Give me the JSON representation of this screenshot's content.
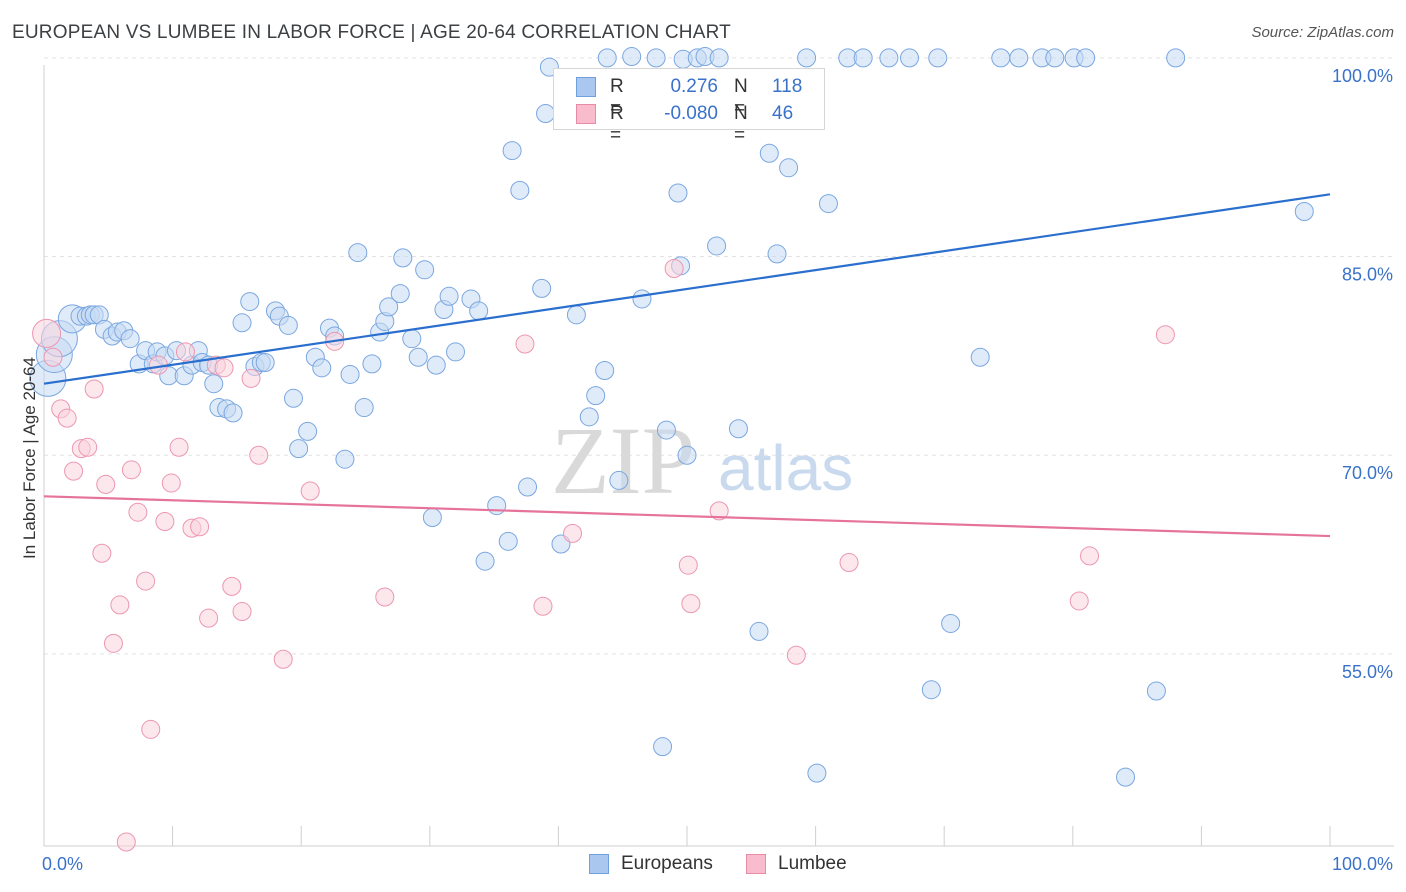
{
  "header": {
    "title": "EUROPEAN VS LUMBEE IN LABOR FORCE | AGE 20-64 CORRELATION CHART",
    "source": "Source: ZipAtlas.com"
  },
  "watermark": {
    "zip": "ZIP",
    "atlas": "atlas"
  },
  "legend": {
    "rows": [
      {
        "r_label": "R =",
        "r_value": "0.276",
        "n_label": "N =",
        "n_value": "118",
        "color": "#a9c7ef",
        "border": "#6f9fdc"
      },
      {
        "r_label": "R =",
        "r_value": "-0.080",
        "n_label": "N =",
        "n_value": "46",
        "color": "#f8bccd",
        "border": "#e98aa7"
      }
    ]
  },
  "bottom_legend": [
    {
      "label": "Europeans",
      "color": "#a9c7ef",
      "border": "#6f9fdc"
    },
    {
      "label": "Lumbee",
      "color": "#f8bccd",
      "border": "#e98aa7"
    }
  ],
  "chart_data": {
    "type": "scatter",
    "title": "EUROPEAN VS LUMBEE IN LABOR FORCE | AGE 20-64 CORRELATION CHART",
    "xlabel": "",
    "ylabel": "In Labor Force | Age 20-64",
    "xlim": [
      0,
      100
    ],
    "ylim": [
      40.5,
      101.5
    ],
    "x_tick_labels": [
      {
        "value": 0,
        "label": "0.0%"
      },
      {
        "value": 100,
        "label": "100.0%"
      }
    ],
    "y_tick_labels": [
      {
        "value": 55,
        "label": "55.0%"
      },
      {
        "value": 70,
        "label": "70.0%"
      },
      {
        "value": 85,
        "label": "85.0%"
      },
      {
        "value": 100,
        "label": "100.0%"
      }
    ],
    "grid": true,
    "legend_position": "top-center",
    "series": [
      {
        "name": "Europeans",
        "color": "#7aa7e0",
        "fill": "#c6daf4",
        "trend": {
          "x": [
            0,
            100
          ],
          "y": [
            75.4,
            89.7
          ],
          "color": "#2b6fce"
        },
        "points": [
          [
            0.3,
            75.8,
            3
          ],
          [
            0.8,
            77.6,
            3
          ],
          [
            1.2,
            78.8,
            3
          ],
          [
            2.2,
            80.3,
            2
          ],
          [
            2.8,
            80.5,
            1
          ],
          [
            3.3,
            80.5,
            1
          ],
          [
            3.6,
            80.6,
            1
          ],
          [
            3.9,
            80.6,
            1
          ],
          [
            4.3,
            80.6,
            1
          ],
          [
            4.7,
            79.5,
            1
          ],
          [
            5.3,
            79.0,
            1
          ],
          [
            5.7,
            79.3,
            1
          ],
          [
            6.2,
            79.4,
            1
          ],
          [
            6.7,
            78.8,
            1
          ],
          [
            7.4,
            76.9,
            1
          ],
          [
            7.9,
            77.9,
            1
          ],
          [
            8.5,
            76.9,
            1
          ],
          [
            8.8,
            77.8,
            1
          ],
          [
            9.4,
            77.5,
            1
          ],
          [
            9.7,
            76.0,
            1
          ],
          [
            10.3,
            77.9,
            1
          ],
          [
            10.9,
            76.0,
            1
          ],
          [
            11.5,
            76.8,
            1
          ],
          [
            12.0,
            77.9,
            1
          ],
          [
            12.3,
            77.0,
            1
          ],
          [
            12.8,
            76.8,
            1
          ],
          [
            13.2,
            75.4,
            1
          ],
          [
            13.6,
            73.6,
            1
          ],
          [
            14.2,
            73.5,
            1
          ],
          [
            14.7,
            73.2,
            1
          ],
          [
            15.4,
            80.0,
            1
          ],
          [
            16.0,
            81.6,
            1
          ],
          [
            16.4,
            76.7,
            1
          ],
          [
            16.9,
            77.0,
            1
          ],
          [
            17.2,
            77.0,
            1
          ],
          [
            18.0,
            80.9,
            1
          ],
          [
            18.3,
            80.5,
            1
          ],
          [
            19.0,
            79.8,
            1
          ],
          [
            19.4,
            74.3,
            1
          ],
          [
            19.8,
            70.5,
            1
          ],
          [
            20.5,
            71.8,
            1
          ],
          [
            21.1,
            77.4,
            1
          ],
          [
            21.6,
            76.6,
            1
          ],
          [
            22.2,
            79.6,
            1
          ],
          [
            22.6,
            79.0,
            1
          ],
          [
            23.4,
            69.7,
            1
          ],
          [
            23.8,
            76.1,
            1
          ],
          [
            24.4,
            85.3,
            1
          ],
          [
            24.9,
            73.6,
            1
          ],
          [
            25.5,
            76.9,
            1
          ],
          [
            26.1,
            79.3,
            1
          ],
          [
            26.5,
            80.1,
            1
          ],
          [
            26.8,
            81.2,
            1
          ],
          [
            27.7,
            82.2,
            1
          ],
          [
            27.9,
            84.9,
            1
          ],
          [
            28.6,
            78.8,
            1
          ],
          [
            29.1,
            77.4,
            1
          ],
          [
            29.6,
            84.0,
            1
          ],
          [
            30.2,
            65.3,
            1
          ],
          [
            30.5,
            76.8,
            1
          ],
          [
            31.1,
            81.0,
            1
          ],
          [
            31.5,
            82.0,
            1
          ],
          [
            32.0,
            77.8,
            1
          ],
          [
            33.2,
            81.8,
            1
          ],
          [
            33.8,
            80.9,
            1
          ],
          [
            34.3,
            62.0,
            1
          ],
          [
            35.2,
            66.2,
            1
          ],
          [
            36.1,
            63.5,
            1
          ],
          [
            36.4,
            93.0,
            1
          ],
          [
            37.0,
            90.0,
            1
          ],
          [
            37.6,
            67.6,
            1
          ],
          [
            38.7,
            82.6,
            1
          ],
          [
            39.0,
            95.8,
            1
          ],
          [
            39.3,
            99.3,
            1
          ],
          [
            40.2,
            63.3,
            1
          ],
          [
            41.4,
            80.6,
            1
          ],
          [
            42.4,
            72.9,
            1
          ],
          [
            42.9,
            74.5,
            1
          ],
          [
            43.6,
            76.4,
            1
          ],
          [
            43.8,
            100.0,
            1
          ],
          [
            44.7,
            68.1,
            1
          ],
          [
            45.3,
            96.9,
            1
          ],
          [
            45.7,
            100.1,
            1
          ],
          [
            46.5,
            81.8,
            1
          ],
          [
            47.0,
            96.2,
            1
          ],
          [
            47.6,
            100.0,
            1
          ],
          [
            48.1,
            48.0,
            1
          ],
          [
            48.4,
            71.9,
            1
          ],
          [
            49.3,
            89.8,
            1
          ],
          [
            49.5,
            84.3,
            1
          ],
          [
            49.7,
            99.9,
            1
          ],
          [
            50.0,
            70.0,
            1
          ],
          [
            50.8,
            100.0,
            1
          ],
          [
            51.4,
            100.1,
            1
          ],
          [
            52.3,
            85.8,
            1
          ],
          [
            52.5,
            100.0,
            1
          ],
          [
            54.0,
            72.0,
            1
          ],
          [
            55.6,
            56.7,
            1
          ],
          [
            56.4,
            92.8,
            1
          ],
          [
            57.0,
            85.2,
            1
          ],
          [
            57.9,
            91.7,
            1
          ],
          [
            59.3,
            100.0,
            1
          ],
          [
            60.1,
            46.0,
            1
          ],
          [
            61.0,
            89.0,
            1
          ],
          [
            62.5,
            100.0,
            1
          ],
          [
            63.7,
            100.0,
            1
          ],
          [
            65.7,
            100.0,
            1
          ],
          [
            67.3,
            100.0,
            1
          ],
          [
            69.0,
            52.3,
            1
          ],
          [
            69.5,
            100.0,
            1
          ],
          [
            70.5,
            57.3,
            1
          ],
          [
            72.8,
            77.4,
            1
          ],
          [
            74.4,
            100.0,
            1
          ],
          [
            75.8,
            100.0,
            1
          ],
          [
            77.6,
            100.0,
            1
          ],
          [
            78.6,
            100.0,
            1
          ],
          [
            80.1,
            100.0,
            1
          ],
          [
            81.0,
            100.0,
            1
          ],
          [
            84.1,
            45.7,
            1
          ],
          [
            86.5,
            52.2,
            1
          ],
          [
            88.0,
            100.0,
            1
          ],
          [
            98.0,
            88.4,
            1
          ]
        ]
      },
      {
        "name": "Lumbee",
        "color": "#ec97b1",
        "fill": "#f9d3de",
        "trend": {
          "x": [
            0,
            100
          ],
          "y": [
            66.9,
            63.9
          ],
          "color": "#e5739a"
        },
        "points": [
          [
            0.2,
            79.2,
            2
          ],
          [
            0.7,
            77.4,
            1
          ],
          [
            1.3,
            73.5,
            1
          ],
          [
            1.8,
            72.8,
            1
          ],
          [
            2.3,
            68.8,
            1
          ],
          [
            2.9,
            70.5,
            1
          ],
          [
            3.4,
            70.6,
            1
          ],
          [
            3.9,
            75.0,
            1
          ],
          [
            4.5,
            62.6,
            1
          ],
          [
            4.8,
            67.8,
            1
          ],
          [
            5.4,
            55.8,
            1
          ],
          [
            5.9,
            58.7,
            1
          ],
          [
            6.4,
            40.8,
            1
          ],
          [
            6.8,
            68.9,
            1
          ],
          [
            7.3,
            65.7,
            1
          ],
          [
            7.9,
            60.5,
            1
          ],
          [
            8.3,
            49.3,
            1
          ],
          [
            8.9,
            76.8,
            1
          ],
          [
            9.4,
            65.0,
            1
          ],
          [
            9.9,
            67.9,
            1
          ],
          [
            10.5,
            70.6,
            1
          ],
          [
            11.0,
            77.8,
            1
          ],
          [
            11.5,
            64.5,
            1
          ],
          [
            12.1,
            64.6,
            1
          ],
          [
            12.8,
            57.7,
            1
          ],
          [
            13.4,
            76.8,
            1
          ],
          [
            14.0,
            76.6,
            1
          ],
          [
            14.6,
            60.1,
            1
          ],
          [
            15.4,
            58.2,
            1
          ],
          [
            16.1,
            75.8,
            1
          ],
          [
            16.7,
            70.0,
            1
          ],
          [
            18.6,
            54.6,
            1
          ],
          [
            20.7,
            67.3,
            1
          ],
          [
            22.6,
            78.6,
            1
          ],
          [
            26.5,
            59.3,
            1
          ],
          [
            37.4,
            78.4,
            1
          ],
          [
            38.8,
            58.6,
            1
          ],
          [
            41.1,
            64.1,
            1
          ],
          [
            49.0,
            84.1,
            1
          ],
          [
            50.1,
            61.7,
            1
          ],
          [
            50.3,
            58.8,
            1
          ],
          [
            52.5,
            65.8,
            1
          ],
          [
            58.5,
            54.9,
            1
          ],
          [
            62.6,
            61.9,
            1
          ],
          [
            80.5,
            59.0,
            1
          ],
          [
            81.3,
            62.4,
            1
          ],
          [
            87.2,
            79.1,
            1
          ]
        ]
      }
    ]
  }
}
